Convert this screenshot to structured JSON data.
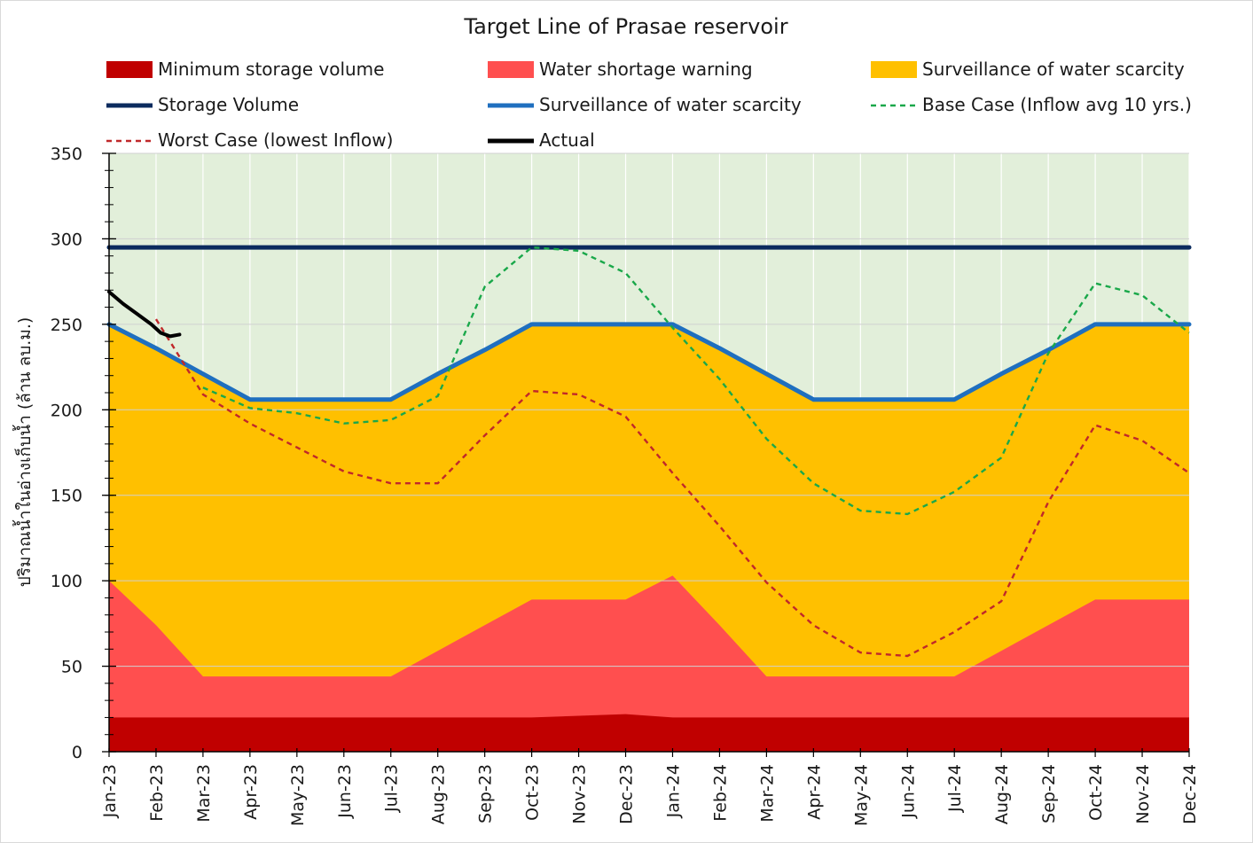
{
  "chart_data": {
    "type": "area",
    "title": "Target Line of Prasae reservoir",
    "ylabel": "ปริมาณน้ำในอ่างเก็บน้ำ (ล้าน ลบ.ม.)",
    "xlabel": "",
    "ylim": [
      0,
      350
    ],
    "y_ticks": [
      "0",
      "50",
      "100",
      "150",
      "200",
      "250",
      "300",
      "350"
    ],
    "y_tick_values": [
      0,
      50,
      100,
      150,
      200,
      250,
      300,
      350
    ],
    "grid": true,
    "legend_position": "top",
    "categories": [
      "Jan-23",
      "Feb-23",
      "Mar-23",
      "Apr-23",
      "May-23",
      "Jun-23",
      "Jul-23",
      "Aug-23",
      "Sep-23",
      "Oct-23",
      "Nov-23",
      "Dec-23",
      "Jan-24",
      "Feb-24",
      "Mar-24",
      "Apr-24",
      "May-24",
      "Jun-24",
      "Jul-24",
      "Aug-24",
      "Sep-24",
      "Oct-24",
      "Nov-24",
      "Dec-24"
    ],
    "background_band": {
      "color": "#e2efda",
      "from": 0,
      "to": 350
    },
    "series": [
      {
        "name": "Minimum storage volume",
        "kind": "area",
        "color": "#c00000",
        "values": [
          20,
          20,
          20,
          20,
          20,
          20,
          20,
          20,
          20,
          20,
          21,
          22,
          20,
          20,
          20,
          20,
          20,
          20,
          20,
          20,
          20,
          20,
          20,
          20
        ]
      },
      {
        "name": "Water shortage warning",
        "kind": "area",
        "color": "#ff4f4f",
        "values": [
          100,
          74,
          44,
          44,
          44,
          44,
          44,
          59,
          74,
          89,
          89,
          89,
          103,
          74,
          44,
          44,
          44,
          44,
          44,
          59,
          74,
          89,
          89,
          89
        ]
      },
      {
        "name": "Surveillance of water scarcity",
        "kind": "area",
        "color": "#ffc000",
        "values": [
          250,
          236,
          221,
          206,
          206,
          206,
          206,
          221,
          235,
          250,
          250,
          250,
          250,
          236,
          221,
          206,
          206,
          206,
          206,
          221,
          235,
          250,
          250,
          250
        ]
      },
      {
        "name": "Storage Volume",
        "kind": "line",
        "color": "#0b2b5e",
        "dash": "none",
        "values": [
          295,
          295,
          295,
          295,
          295,
          295,
          295,
          295,
          295,
          295,
          295,
          295,
          295,
          295,
          295,
          295,
          295,
          295,
          295,
          295,
          295,
          295,
          295,
          295
        ]
      },
      {
        "name": "Surveillance of water scarcity",
        "kind": "line",
        "color": "#1f6fbf",
        "dash": "none",
        "values": [
          250,
          236,
          221,
          206,
          206,
          206,
          206,
          221,
          235,
          250,
          250,
          250,
          250,
          236,
          221,
          206,
          206,
          206,
          206,
          221,
          235,
          250,
          250,
          250
        ]
      },
      {
        "name": "Base Case (Inflow avg 10 yrs.)",
        "kind": "line",
        "color": "#1aa84a",
        "dash": "dashed",
        "values": [
          null,
          null,
          213,
          201,
          198,
          192,
          194,
          208,
          272,
          295,
          293,
          280,
          248,
          218,
          183,
          157,
          141,
          139,
          152,
          172,
          233,
          274,
          267,
          245
        ]
      },
      {
        "name": "Worst Case (lowest Inflow)",
        "kind": "line",
        "color": "#c0282a",
        "dash": "dashed",
        "values": [
          null,
          253,
          209,
          192,
          178,
          164,
          157,
          157,
          185,
          211,
          209,
          196,
          163,
          132,
          99,
          74,
          58,
          56,
          70,
          88,
          146,
          191,
          182,
          163
        ]
      },
      {
        "name": "Actual",
        "kind": "line",
        "color": "#000000",
        "dash": "none",
        "x": [
          0,
          0.3,
          0.6,
          0.9,
          1.1,
          1.3,
          1.5
        ],
        "values": [
          269,
          262,
          256,
          250,
          245,
          243,
          244
        ]
      }
    ]
  }
}
